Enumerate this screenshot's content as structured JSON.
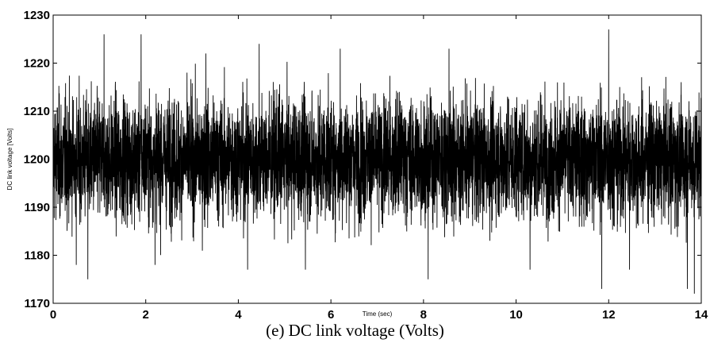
{
  "caption": "(e)  DC link voltage (Volts)",
  "chart_data": {
    "type": "line",
    "title": "",
    "xlabel": "Time (sec)",
    "ylabel": "DC link voltage [Volts]",
    "xlim": [
      0,
      14
    ],
    "ylim": [
      1170,
      1230
    ],
    "xticks": [
      0,
      2,
      4,
      6,
      8,
      10,
      12,
      14
    ],
    "yticks": [
      1170,
      1180,
      1190,
      1200,
      1210,
      1220,
      1230
    ],
    "grid": false,
    "legend": "none",
    "series": [
      {
        "color": "#000000",
        "mean": 1200,
        "typical_band": [
          1186,
          1214
        ],
        "x": [
          0,
          0.5,
          0.75,
          1.1,
          1.9,
          2.2,
          3.3,
          4.2,
          4.45,
          5.45,
          6.2,
          8.1,
          8.55,
          10.3,
          11.85,
          12.0,
          12.45,
          13.7,
          13.85,
          14
        ],
        "y": [
          1200,
          1178,
          1175,
          1226,
          1226,
          1178,
          1222,
          1177,
          1224,
          1177,
          1223,
          1175,
          1223,
          1177,
          1173,
          1227,
          1177,
          1173,
          1172,
          1200
        ]
      }
    ]
  }
}
